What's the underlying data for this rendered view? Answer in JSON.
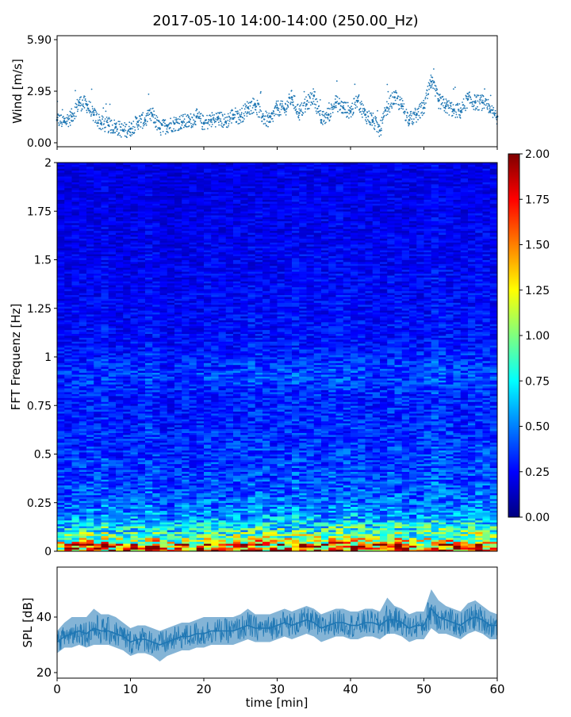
{
  "figure": {
    "title": "2017-05-10 14:00-14:00 (250.00_Hz)"
  },
  "colors": {
    "series": "#1f77b4",
    "jet": [
      "#00007f",
      "#0000ff",
      "#007fff",
      "#00ffff",
      "#7fff7f",
      "#ffff00",
      "#ff7f00",
      "#ff0000",
      "#7f0000"
    ]
  },
  "chart_data": [
    {
      "id": "wind",
      "type": "scatter",
      "title": "",
      "xlabel": "",
      "ylabel": "Wind [m/s]",
      "xlim": [
        0,
        60
      ],
      "ylim": [
        0.0,
        5.9
      ],
      "yticks": [
        "0.00",
        "2.95",
        "5.90"
      ],
      "x_tick_values": [
        0,
        10,
        20,
        30,
        40,
        50,
        60
      ],
      "x": [
        0,
        1,
        2,
        3,
        4,
        5,
        6,
        7,
        8,
        9,
        10,
        11,
        12,
        13,
        14,
        15,
        16,
        17,
        18,
        19,
        20,
        21,
        22,
        23,
        24,
        25,
        26,
        27,
        28,
        29,
        30,
        31,
        32,
        33,
        34,
        35,
        36,
        37,
        38,
        39,
        40,
        41,
        42,
        43,
        44,
        45,
        46,
        47,
        48,
        49,
        50,
        51,
        52,
        53,
        54,
        55,
        56,
        57,
        58,
        59,
        60
      ],
      "y": [
        1.3,
        1.2,
        1.5,
        2.3,
        2.2,
        1.6,
        1.1,
        1.0,
        0.9,
        0.7,
        0.8,
        1.2,
        1.3,
        1.6,
        0.8,
        1.0,
        1.1,
        1.2,
        1.2,
        1.5,
        1.1,
        1.3,
        1.4,
        1.2,
        1.6,
        1.5,
        2.0,
        2.2,
        1.5,
        1.2,
        2.0,
        1.9,
        2.6,
        1.7,
        2.2,
        2.7,
        1.3,
        1.6,
        2.3,
        2.0,
        1.8,
        2.4,
        1.6,
        1.3,
        0.7,
        2.0,
        2.6,
        2.1,
        1.3,
        1.6,
        2.0,
        3.5,
        2.4,
        2.1,
        1.9,
        1.8,
        2.5,
        2.3,
        2.3,
        1.8,
        1.5
      ]
    },
    {
      "id": "spectrogram",
      "type": "heatmap",
      "title": "",
      "xlabel": "",
      "ylabel": "FFT Frequenz [Hz]",
      "xlim": [
        0,
        60
      ],
      "ylim": [
        0,
        2
      ],
      "yticks": [
        "0",
        "0.25",
        "0.5",
        "0.75",
        "1",
        "1.25",
        "1.5",
        "1.75",
        "2"
      ],
      "colorbar": {
        "min": 0.0,
        "max": 2.0,
        "colormap": "jet",
        "ticks": [
          "0.00",
          "0.25",
          "0.50",
          "0.75",
          "1.00",
          "1.25",
          "1.50",
          "1.75",
          "2.00"
        ]
      },
      "time_profile": [
        0.95,
        0.95,
        1.0,
        1.0,
        1.05,
        1.0,
        1.1,
        1.0,
        0.95,
        0.95,
        1.0,
        1.0,
        1.1,
        1.05,
        0.9,
        0.9,
        0.95,
        1.0,
        1.0,
        1.0,
        1.05,
        1.05,
        1.0,
        1.0,
        1.05,
        1.0,
        1.1,
        1.1,
        1.05,
        1.0,
        1.1,
        1.05,
        1.15,
        1.1,
        1.05,
        1.1,
        1.05,
        1.1,
        1.15,
        1.1,
        1.1,
        1.1,
        1.05,
        1.05,
        1.0,
        1.1,
        1.1,
        1.05,
        1.0,
        1.05,
        1.1,
        1.2,
        1.15,
        1.1,
        1.05,
        1.05,
        1.1,
        1.15,
        1.1,
        1.05
      ],
      "freq_profile": [
        1.55,
        1.1,
        0.8,
        0.62,
        0.5,
        0.44,
        0.4,
        0.38,
        0.36,
        0.35,
        0.34,
        0.33,
        0.32,
        0.31,
        0.3,
        0.3,
        0.3,
        0.33,
        0.36,
        0.34,
        0.3,
        0.27,
        0.26,
        0.25,
        0.25,
        0.24,
        0.24,
        0.23,
        0.23,
        0.22,
        0.22,
        0.22,
        0.21,
        0.21,
        0.21,
        0.2,
        0.2,
        0.2,
        0.2,
        0.2,
        0.2
      ]
    },
    {
      "id": "spl",
      "type": "area",
      "title": "",
      "xlabel": "time [min]",
      "ylabel": "SPL [dB]",
      "xlim": [
        0,
        60
      ],
      "ylim": [
        18,
        58
      ],
      "yticks": [
        "20",
        "40"
      ],
      "xticks": [
        "0",
        "10",
        "20",
        "30",
        "40",
        "50",
        "60"
      ],
      "x": [
        0,
        1,
        2,
        3,
        4,
        5,
        6,
        7,
        8,
        9,
        10,
        11,
        12,
        13,
        14,
        15,
        16,
        17,
        18,
        19,
        20,
        21,
        22,
        23,
        24,
        25,
        26,
        27,
        28,
        29,
        30,
        31,
        32,
        33,
        34,
        35,
        36,
        37,
        38,
        39,
        40,
        41,
        42,
        43,
        44,
        45,
        46,
        47,
        48,
        49,
        50,
        51,
        52,
        53,
        54,
        55,
        56,
        57,
        58,
        59,
        60
      ],
      "median": [
        31,
        33,
        34,
        35,
        34,
        36,
        35,
        35,
        34,
        33,
        31,
        32,
        32,
        31,
        30,
        31,
        32,
        33,
        33,
        34,
        34,
        35,
        35,
        35,
        35,
        36,
        37,
        36,
        36,
        36,
        37,
        38,
        37,
        38,
        39,
        38,
        36,
        37,
        38,
        38,
        37,
        37,
        38,
        38,
        37,
        39,
        39,
        38,
        36,
        37,
        37,
        43,
        40,
        39,
        38,
        37,
        39,
        40,
        39,
        37,
        37
      ],
      "upper": [
        35,
        38,
        40,
        40,
        40,
        43,
        41,
        41,
        40,
        38,
        36,
        37,
        37,
        36,
        35,
        36,
        37,
        38,
        38,
        39,
        40,
        40,
        40,
        40,
        40,
        41,
        43,
        41,
        41,
        41,
        42,
        43,
        42,
        43,
        44,
        43,
        41,
        42,
        43,
        43,
        42,
        42,
        43,
        43,
        42,
        47,
        44,
        43,
        41,
        42,
        42,
        50,
        46,
        44,
        43,
        42,
        45,
        46,
        44,
        42,
        41
      ],
      "lower": [
        27,
        29,
        29,
        30,
        29,
        30,
        30,
        30,
        29,
        28,
        26,
        27,
        27,
        26,
        24,
        26,
        27,
        28,
        28,
        29,
        29,
        30,
        30,
        30,
        30,
        31,
        32,
        31,
        31,
        31,
        32,
        33,
        32,
        33,
        34,
        33,
        31,
        32,
        33,
        33,
        32,
        32,
        33,
        33,
        32,
        34,
        34,
        33,
        31,
        32,
        32,
        36,
        34,
        34,
        33,
        32,
        34,
        35,
        34,
        32,
        32
      ]
    }
  ]
}
